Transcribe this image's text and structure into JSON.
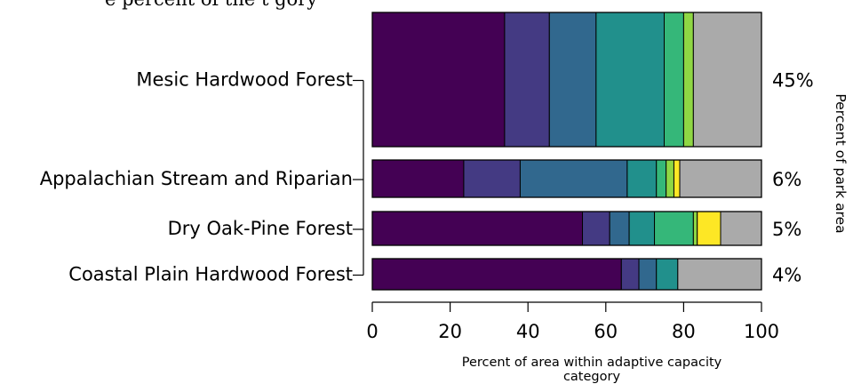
{
  "chart_data": {
    "type": "bar",
    "orientation": "horizontal",
    "stacked": true,
    "top_partial_text": "e      percent of the    t  gory",
    "categories": [
      "Mesic Hardwood Forest",
      "Appalachian Stream and Riparian",
      "Dry Oak-Pine Forest",
      "Coastal Plain Hardwood Forest"
    ],
    "park_area_labels": [
      "45%",
      "6%",
      "5%",
      "4%"
    ],
    "park_area_percent": [
      45,
      6,
      5,
      4
    ],
    "segment_colors": [
      "#440154",
      "#443a83",
      "#31688e",
      "#21908c",
      "#35b779",
      "#8fd744",
      "#fde725",
      "#aaaaaa"
    ],
    "segments": [
      [
        34,
        11.5,
        12,
        17.5,
        5,
        2.5,
        0,
        17.5
      ],
      [
        23.5,
        14.5,
        27.5,
        7.5,
        2.5,
        2,
        1.5,
        21
      ],
      [
        54,
        7,
        5,
        6.5,
        10,
        1,
        6,
        10.5
      ],
      [
        64,
        4.5,
        4.5,
        5.5,
        0,
        0,
        0,
        21.5
      ]
    ],
    "xlabel": "Percent of area within adaptive capacity category",
    "ylabel_right": "Percent of park area",
    "xlim": [
      0,
      100
    ],
    "xticks": [
      "0",
      "20",
      "40",
      "60",
      "80",
      "100"
    ],
    "xtick_values": [
      0,
      20,
      40,
      60,
      80,
      100
    ]
  }
}
